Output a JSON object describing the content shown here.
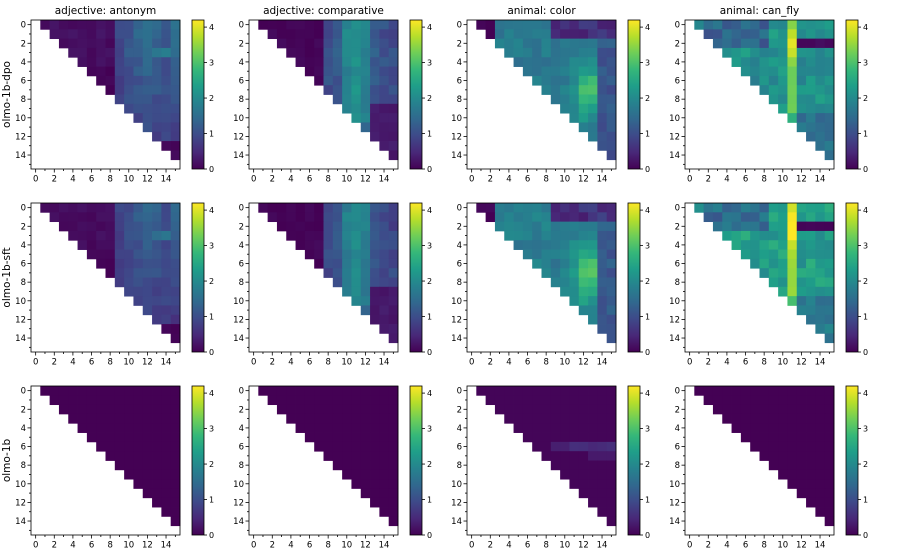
{
  "figure": {
    "col_titles": [
      "adjective: antonym",
      "adjective: comparative",
      "animal: color",
      "animal: can_fly"
    ],
    "row_labels": [
      "olmo-1b-dpo",
      "olmo-1b-sft",
      "olmo-1b"
    ]
  },
  "colormap": {
    "name": "viridis",
    "stops": [
      "#440154",
      "#482878",
      "#3e4989",
      "#31688e",
      "#26828e",
      "#1f9e89",
      "#35b779",
      "#6ece58",
      "#b5de2b",
      "#fde725"
    ]
  },
  "chart_data": {
    "type": "heatmap",
    "size": 16,
    "layout": "upper-triangle (j > i), lower triangle blank",
    "x_ticks": [
      0,
      2,
      4,
      6,
      8,
      10,
      12,
      14
    ],
    "y_ticks": [
      0,
      2,
      4,
      6,
      8,
      10,
      12,
      14
    ],
    "colorbar": {
      "min": 0,
      "max": 4.2,
      "ticks": [
        0,
        1,
        2,
        3,
        4
      ]
    },
    "panels": [
      {
        "row": "olmo-1b-dpo",
        "col": "adjective: antonym",
        "pattern": "antonym",
        "strength": 1.0
      },
      {
        "row": "olmo-1b-dpo",
        "col": "adjective: comparative",
        "pattern": "comparative",
        "strength": 1.0
      },
      {
        "row": "olmo-1b-dpo",
        "col": "animal: color",
        "pattern": "color",
        "strength": 1.0
      },
      {
        "row": "olmo-1b-dpo",
        "col": "animal: can_fly",
        "pattern": "canfly",
        "strength": 1.0
      },
      {
        "row": "olmo-1b-sft",
        "col": "adjective: antonym",
        "pattern": "antonym",
        "strength": 0.9
      },
      {
        "row": "olmo-1b-sft",
        "col": "adjective: comparative",
        "pattern": "comparative",
        "strength": 0.95
      },
      {
        "row": "olmo-1b-sft",
        "col": "animal: color",
        "pattern": "color",
        "strength": 1.05
      },
      {
        "row": "olmo-1b-sft",
        "col": "animal: can_fly",
        "pattern": "canfly",
        "strength": 1.1
      },
      {
        "row": "olmo-1b",
        "col": "adjective: antonym",
        "pattern": "zero",
        "strength": 0
      },
      {
        "row": "olmo-1b",
        "col": "adjective: comparative",
        "pattern": "zero",
        "strength": 0
      },
      {
        "row": "olmo-1b",
        "col": "animal: color",
        "pattern": "base_color",
        "strength": 1.0
      },
      {
        "row": "olmo-1b",
        "col": "animal: can_fly",
        "pattern": "zero",
        "strength": 0
      }
    ]
  }
}
